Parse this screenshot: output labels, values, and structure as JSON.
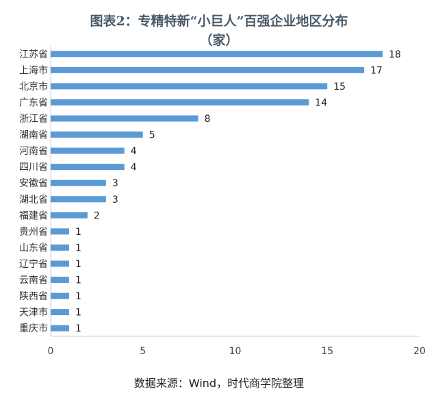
{
  "chart_data": {
    "type": "bar",
    "orientation": "horizontal",
    "title": "图表2：专精特新“小巨人”百强企业地区分布",
    "subtitle": "（家）",
    "categories": [
      "江苏省",
      "上海市",
      "北京市",
      "广东省",
      "浙江省",
      "湖南省",
      "河南省",
      "四川省",
      "安徽省",
      "湖北省",
      "福建省",
      "贵州省",
      "山东省",
      "辽宁省",
      "云南省",
      "陕西省",
      "天津市",
      "重庆市"
    ],
    "values": [
      18,
      17,
      15,
      14,
      8,
      5,
      4,
      4,
      3,
      3,
      2,
      1,
      1,
      1,
      1,
      1,
      1,
      1
    ],
    "xlim": [
      0,
      20
    ],
    "xticks": [
      0,
      5,
      10,
      15,
      20
    ],
    "bar_color": "#5b9bd5",
    "grid": false,
    "legend": "none"
  },
  "footer": {
    "source": "数据来源：Wind，时代商学院整理"
  }
}
